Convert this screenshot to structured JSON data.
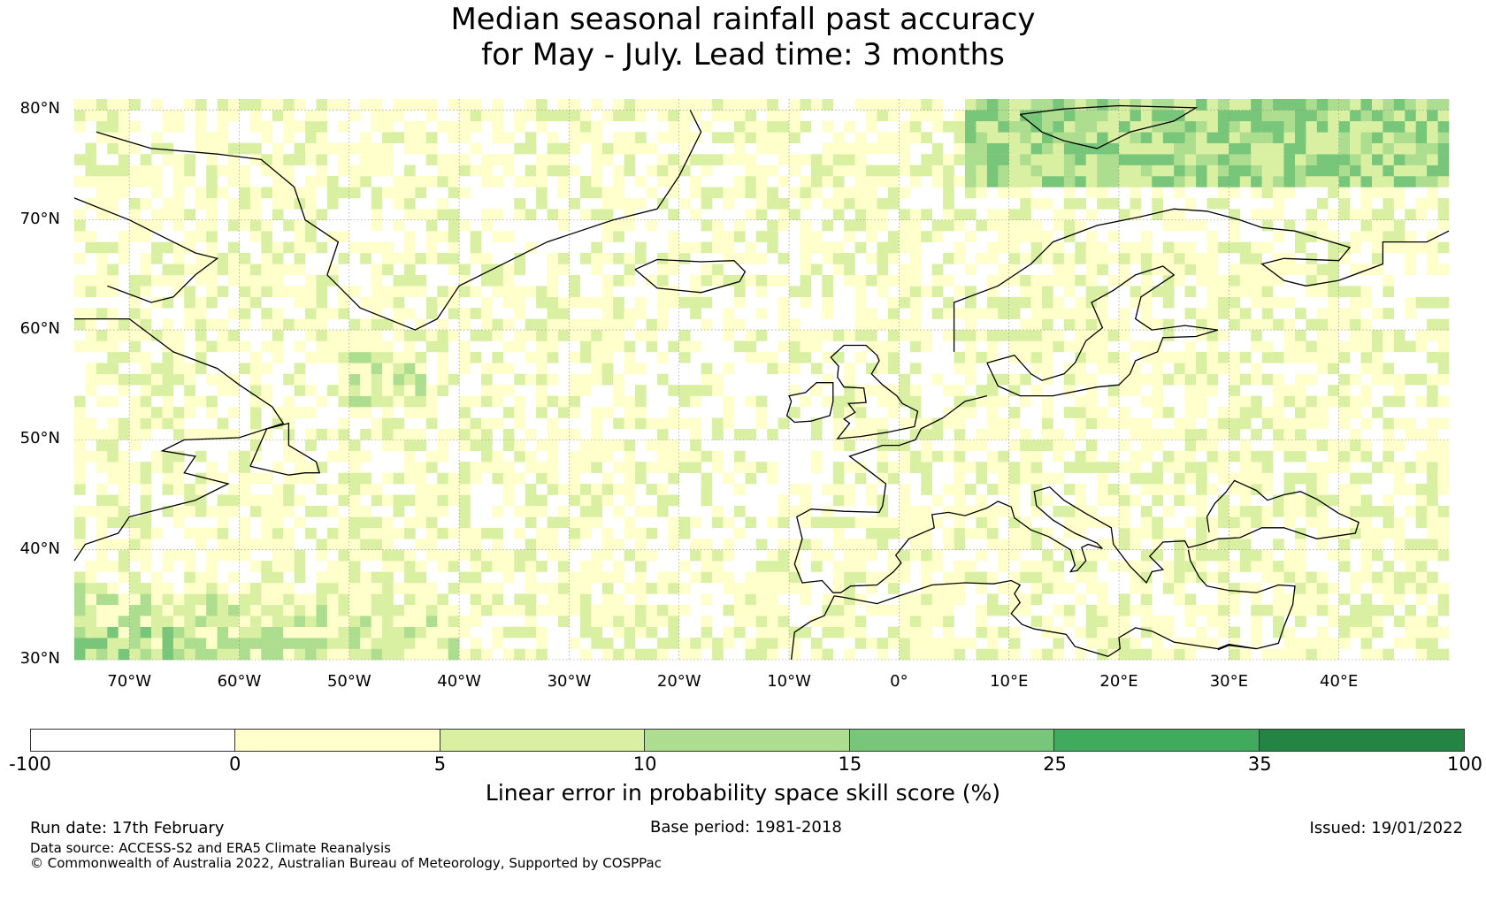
{
  "title": {
    "line1": "Median seasonal rainfall past accuracy",
    "line2": "for May - July. Lead time: 3 months"
  },
  "map": {
    "extent": {
      "lon_min": -75,
      "lon_max": 50,
      "lat_min": 30,
      "lat_max": 81
    },
    "lat_labels": [
      {
        "lat": 80,
        "text": "80°N"
      },
      {
        "lat": 70,
        "text": "70°N"
      },
      {
        "lat": 60,
        "text": "60°N"
      },
      {
        "lat": 50,
        "text": "50°N"
      },
      {
        "lat": 40,
        "text": "40°N"
      },
      {
        "lat": 30,
        "text": "30°N"
      }
    ],
    "lon_labels": [
      {
        "lon": -70,
        "text": "70°W"
      },
      {
        "lon": -60,
        "text": "60°W"
      },
      {
        "lon": -50,
        "text": "50°W"
      },
      {
        "lon": -40,
        "text": "40°W"
      },
      {
        "lon": -30,
        "text": "30°W"
      },
      {
        "lon": -20,
        "text": "20°W"
      },
      {
        "lon": -10,
        "text": "10°W"
      },
      {
        "lon": 0,
        "text": "0°"
      },
      {
        "lon": 10,
        "text": "10°E"
      },
      {
        "lon": 20,
        "text": "20°E"
      },
      {
        "lon": 30,
        "text": "30°E"
      },
      {
        "lon": 40,
        "text": "40°E"
      }
    ]
  },
  "colorbar": {
    "segments": [
      {
        "from": -100,
        "to": 0,
        "color": "#ffffff"
      },
      {
        "from": 0,
        "to": 5,
        "color": "#ffffcc"
      },
      {
        "from": 5,
        "to": 10,
        "color": "#d9f0a3"
      },
      {
        "from": 10,
        "to": 15,
        "color": "#addd8e"
      },
      {
        "from": 15,
        "to": 25,
        "color": "#78c679"
      },
      {
        "from": 25,
        "to": 35,
        "color": "#41ab5d"
      },
      {
        "from": 35,
        "to": 100,
        "color": "#238443"
      }
    ],
    "ticks": [
      "-100",
      "0",
      "5",
      "10",
      "15",
      "25",
      "35",
      "100"
    ],
    "label": "Linear error in probability space skill score (%)"
  },
  "footer": {
    "run_date": "Run date: 17th February",
    "base_period": "Base period: 1981-2018",
    "issued": "Issued: 19/01/2022",
    "data_source": "Data source: ACCESS-S2 and ERA5 Climate Reanalysis",
    "copyright": "© Commonwealth of Australia 2022, Australian Bureau of Meteorology, Supported by COSPPac"
  }
}
